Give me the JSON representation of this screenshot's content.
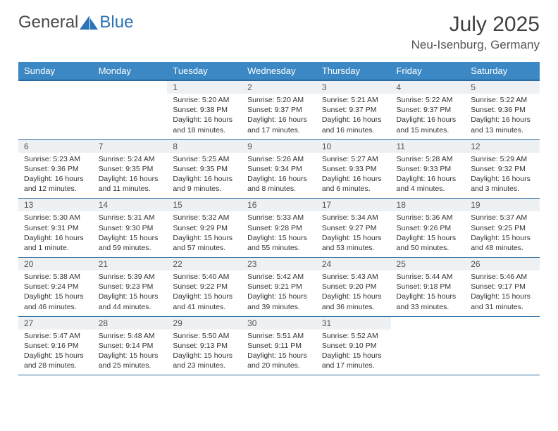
{
  "brand": {
    "part1": "General",
    "part2": "Blue"
  },
  "title": "July 2025",
  "location": "Neu-Isenburg, Germany",
  "colors": {
    "header_bg": "#3b88c4",
    "header_border": "#2a6aa0",
    "daynum_bg": "#eef1f3",
    "row_border": "#2a6aa0",
    "brand_blue": "#2a72b5",
    "text_dark": "#404040"
  },
  "day_headers": [
    "Sunday",
    "Monday",
    "Tuesday",
    "Wednesday",
    "Thursday",
    "Friday",
    "Saturday"
  ],
  "weeks": [
    [
      null,
      null,
      {
        "n": "1",
        "sr": "5:20 AM",
        "ss": "9:38 PM",
        "dl": "16 hours and 18 minutes."
      },
      {
        "n": "2",
        "sr": "5:20 AM",
        "ss": "9:37 PM",
        "dl": "16 hours and 17 minutes."
      },
      {
        "n": "3",
        "sr": "5:21 AM",
        "ss": "9:37 PM",
        "dl": "16 hours and 16 minutes."
      },
      {
        "n": "4",
        "sr": "5:22 AM",
        "ss": "9:37 PM",
        "dl": "16 hours and 15 minutes."
      },
      {
        "n": "5",
        "sr": "5:22 AM",
        "ss": "9:36 PM",
        "dl": "16 hours and 13 minutes."
      }
    ],
    [
      {
        "n": "6",
        "sr": "5:23 AM",
        "ss": "9:36 PM",
        "dl": "16 hours and 12 minutes."
      },
      {
        "n": "7",
        "sr": "5:24 AM",
        "ss": "9:35 PM",
        "dl": "16 hours and 11 minutes."
      },
      {
        "n": "8",
        "sr": "5:25 AM",
        "ss": "9:35 PM",
        "dl": "16 hours and 9 minutes."
      },
      {
        "n": "9",
        "sr": "5:26 AM",
        "ss": "9:34 PM",
        "dl": "16 hours and 8 minutes."
      },
      {
        "n": "10",
        "sr": "5:27 AM",
        "ss": "9:33 PM",
        "dl": "16 hours and 6 minutes."
      },
      {
        "n": "11",
        "sr": "5:28 AM",
        "ss": "9:33 PM",
        "dl": "16 hours and 4 minutes."
      },
      {
        "n": "12",
        "sr": "5:29 AM",
        "ss": "9:32 PM",
        "dl": "16 hours and 3 minutes."
      }
    ],
    [
      {
        "n": "13",
        "sr": "5:30 AM",
        "ss": "9:31 PM",
        "dl": "16 hours and 1 minute."
      },
      {
        "n": "14",
        "sr": "5:31 AM",
        "ss": "9:30 PM",
        "dl": "15 hours and 59 minutes."
      },
      {
        "n": "15",
        "sr": "5:32 AM",
        "ss": "9:29 PM",
        "dl": "15 hours and 57 minutes."
      },
      {
        "n": "16",
        "sr": "5:33 AM",
        "ss": "9:28 PM",
        "dl": "15 hours and 55 minutes."
      },
      {
        "n": "17",
        "sr": "5:34 AM",
        "ss": "9:27 PM",
        "dl": "15 hours and 53 minutes."
      },
      {
        "n": "18",
        "sr": "5:36 AM",
        "ss": "9:26 PM",
        "dl": "15 hours and 50 minutes."
      },
      {
        "n": "19",
        "sr": "5:37 AM",
        "ss": "9:25 PM",
        "dl": "15 hours and 48 minutes."
      }
    ],
    [
      {
        "n": "20",
        "sr": "5:38 AM",
        "ss": "9:24 PM",
        "dl": "15 hours and 46 minutes."
      },
      {
        "n": "21",
        "sr": "5:39 AM",
        "ss": "9:23 PM",
        "dl": "15 hours and 44 minutes."
      },
      {
        "n": "22",
        "sr": "5:40 AM",
        "ss": "9:22 PM",
        "dl": "15 hours and 41 minutes."
      },
      {
        "n": "23",
        "sr": "5:42 AM",
        "ss": "9:21 PM",
        "dl": "15 hours and 39 minutes."
      },
      {
        "n": "24",
        "sr": "5:43 AM",
        "ss": "9:20 PM",
        "dl": "15 hours and 36 minutes."
      },
      {
        "n": "25",
        "sr": "5:44 AM",
        "ss": "9:18 PM",
        "dl": "15 hours and 33 minutes."
      },
      {
        "n": "26",
        "sr": "5:46 AM",
        "ss": "9:17 PM",
        "dl": "15 hours and 31 minutes."
      }
    ],
    [
      {
        "n": "27",
        "sr": "5:47 AM",
        "ss": "9:16 PM",
        "dl": "15 hours and 28 minutes."
      },
      {
        "n": "28",
        "sr": "5:48 AM",
        "ss": "9:14 PM",
        "dl": "15 hours and 25 minutes."
      },
      {
        "n": "29",
        "sr": "5:50 AM",
        "ss": "9:13 PM",
        "dl": "15 hours and 23 minutes."
      },
      {
        "n": "30",
        "sr": "5:51 AM",
        "ss": "9:11 PM",
        "dl": "15 hours and 20 minutes."
      },
      {
        "n": "31",
        "sr": "5:52 AM",
        "ss": "9:10 PM",
        "dl": "15 hours and 17 minutes."
      },
      null,
      null
    ]
  ]
}
